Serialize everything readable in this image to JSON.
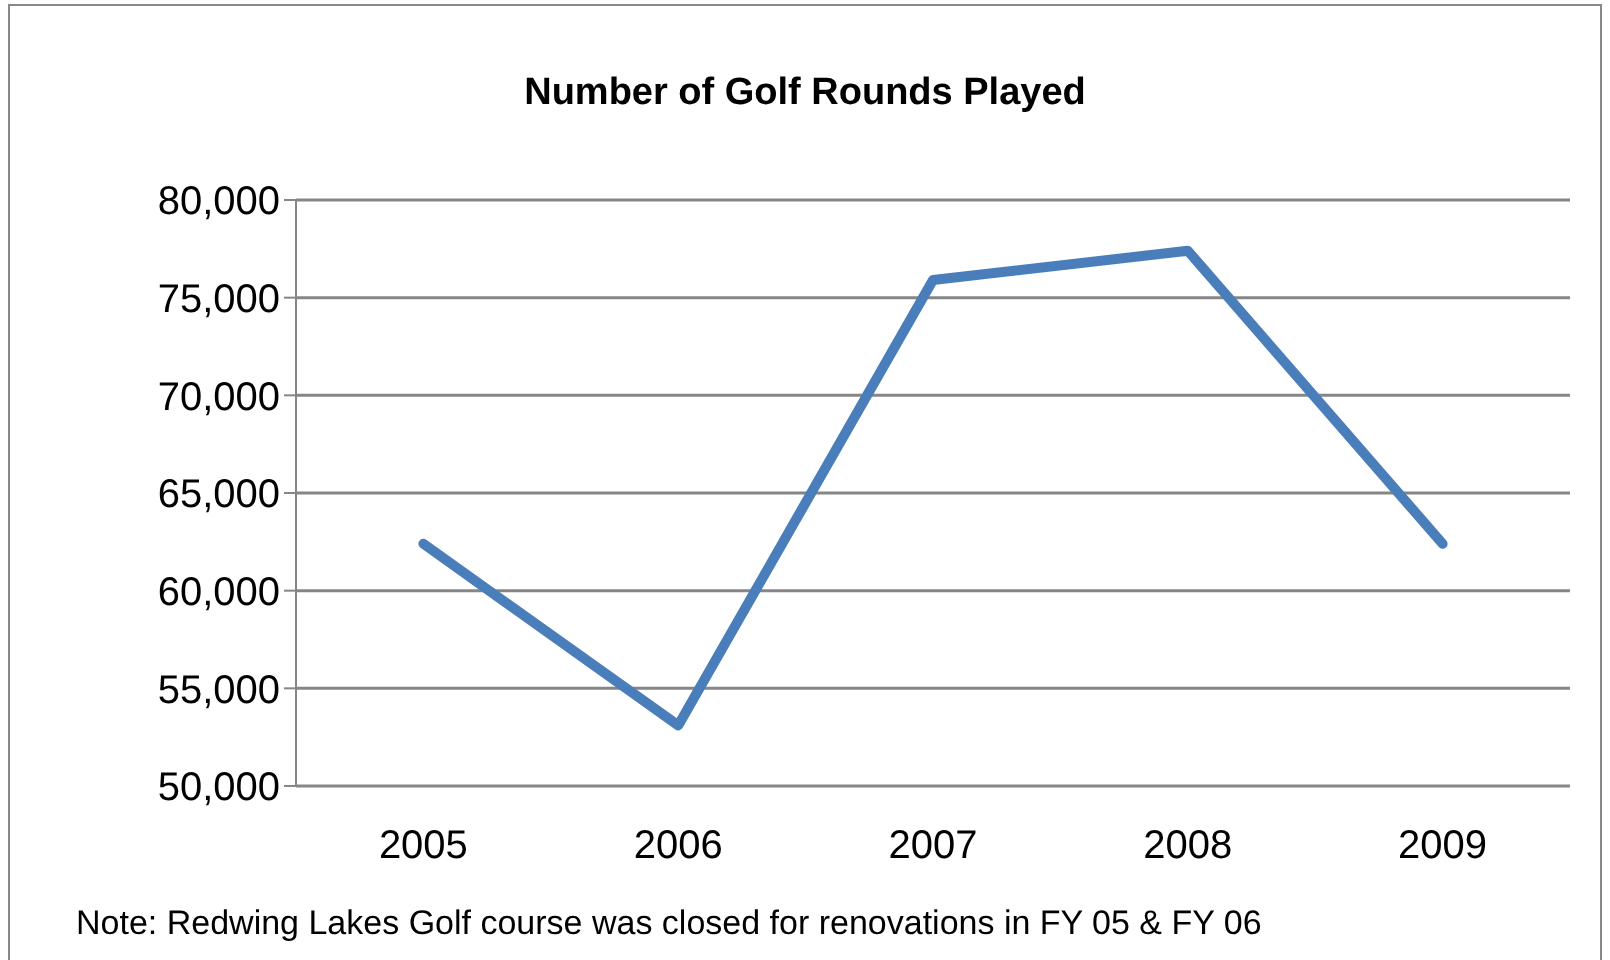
{
  "chart_data": {
    "type": "line",
    "title": "Number of Golf Rounds Played",
    "categories": [
      "2005",
      "2006",
      "2007",
      "2008",
      "2009"
    ],
    "series": [
      {
        "color": "#4a7ebb",
        "values": [
          62400,
          53100,
          75900,
          77400,
          62400
        ]
      }
    ],
    "ylim": [
      50000,
      80000
    ],
    "yticks": [
      {
        "value": 50000,
        "label": "50,000"
      },
      {
        "value": 55000,
        "label": "55,000"
      },
      {
        "value": 60000,
        "label": "60,000"
      },
      {
        "value": 65000,
        "label": "65,000"
      },
      {
        "value": 70000,
        "label": "70,000"
      },
      {
        "value": 75000,
        "label": "75,000"
      },
      {
        "value": 80000,
        "label": "80,000"
      }
    ],
    "grid": "y",
    "legend": false,
    "marker": "none",
    "line_style": "solid",
    "annotations": [
      "Note: Redwing Lakes Golf course was closed for renovations in FY 05 & FY 06"
    ]
  }
}
